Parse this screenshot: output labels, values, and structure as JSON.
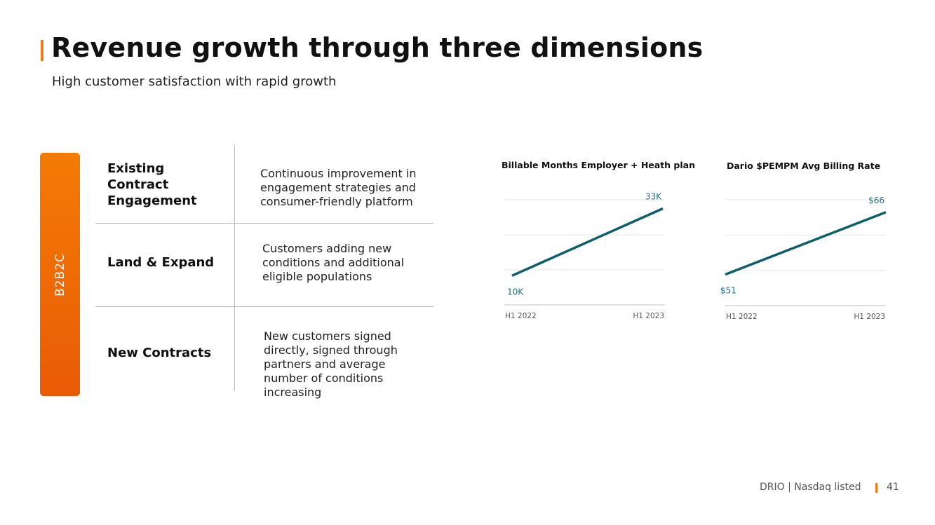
{
  "header": {
    "title": "Revenue growth through three dimensions",
    "subtitle": "High customer satisfaction with rapid growth"
  },
  "segment": {
    "label": "B2B2C"
  },
  "rows": [
    {
      "title": "Existing Contract Engagement",
      "description": "Continuous improvement in engagement strategies and consumer-friendly platform"
    },
    {
      "title": "Land & Expand",
      "description": "Customers adding new conditions and additional eligible populations"
    },
    {
      "title": "New Contracts",
      "description": "New customers signed directly, signed through partners and average number of conditions increasing"
    }
  ],
  "chart_data": [
    {
      "type": "line",
      "title": "Billable Months Employer + Heath plan",
      "categories": [
        "H1 2022",
        "H1 2023"
      ],
      "values": [
        10,
        33
      ],
      "data_labels": [
        "10K",
        "33K"
      ],
      "ylim": [
        0,
        36
      ],
      "color": "#0f5f6a"
    },
    {
      "type": "line",
      "title": "Dario $PEMPM Avg Billing Rate",
      "categories": [
        "H1 2022",
        "H1 2023"
      ],
      "values": [
        51,
        66
      ],
      "data_labels": [
        "$51",
        "$66"
      ],
      "ylim": [
        43.5,
        69
      ],
      "color": "#0f5f6a"
    }
  ],
  "footer": {
    "company": "DRIO | Nasdaq listed",
    "page_number": "41"
  },
  "colors": {
    "accent": "#ee7a1a",
    "line": "#0f5f6a",
    "label": "#1f6d86"
  }
}
